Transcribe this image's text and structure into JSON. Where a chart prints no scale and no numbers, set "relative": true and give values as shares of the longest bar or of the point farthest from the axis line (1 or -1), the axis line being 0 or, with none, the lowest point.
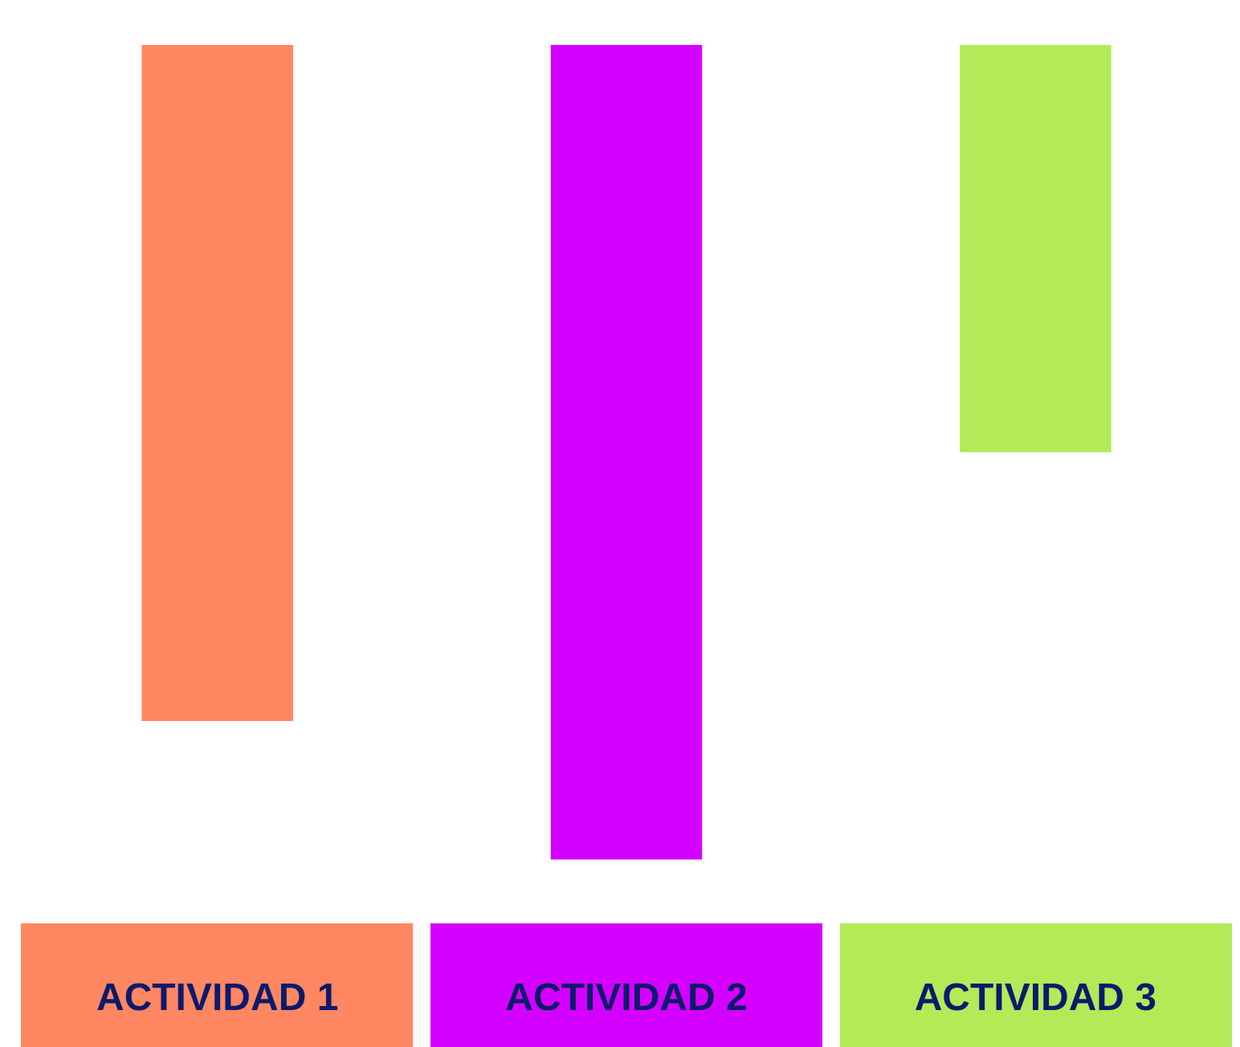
{
  "chart_data": {
    "type": "bar",
    "relative": true,
    "categories": [
      "ACTIVIDAD 1",
      "ACTIVIDAD 2",
      "ACTIVIDAD 3"
    ],
    "values": [
      -0.83,
      -1,
      -0.5
    ],
    "colors": [
      "#ff8762",
      "#d400ff",
      "#b3ea58"
    ],
    "grid": false,
    "legend": false
  }
}
